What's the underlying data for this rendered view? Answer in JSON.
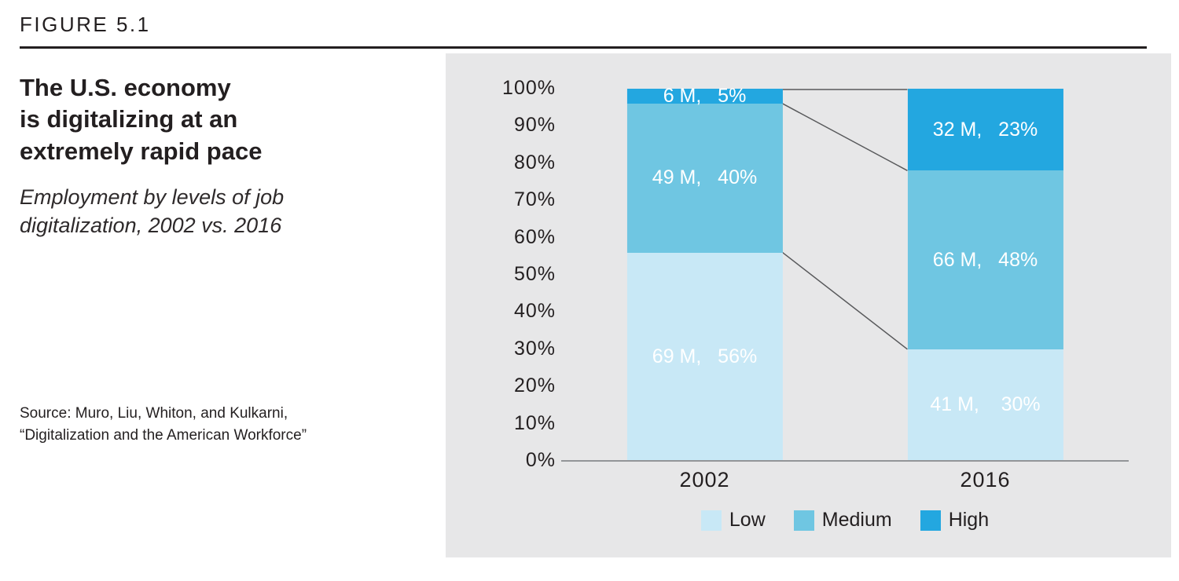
{
  "header": {
    "figure_label": "FIGURE 5.1"
  },
  "left_panel": {
    "title": "The U.S. economy\nis digitalizing at an\nextremely rapid pace",
    "subtitle": "Employment by levels of job\ndigitalization, 2002 vs. 2016",
    "source": "Source: Muro, Liu, Whiton, and Kulkarni,\n“Digitalization and the American Workforce”"
  },
  "chart_data": {
    "type": "bar",
    "variant": "100-percent-stacked-column",
    "title": "Employment by levels of job digitalization, 2002 vs. 2016",
    "categories": [
      "2002",
      "2016"
    ],
    "series": [
      {
        "name": "Low",
        "color": "#c8e8f6",
        "millions": [
          69,
          41
        ],
        "percent": [
          56,
          30
        ],
        "labels": [
          "69 M,   56%",
          "41 M,    30%"
        ]
      },
      {
        "name": "Medium",
        "color": "#6fc6e2",
        "millions": [
          49,
          66
        ],
        "percent": [
          40,
          48
        ],
        "labels": [
          "49 M,   40%",
          "66 M,   48%"
        ]
      },
      {
        "name": "High",
        "color": "#23a7e0",
        "millions": [
          6,
          32
        ],
        "percent": [
          5,
          23
        ],
        "labels": [
          "6 M,   5%",
          "32 M,   23%"
        ]
      }
    ],
    "y_ticks": [
      "100%",
      "90%",
      "80%",
      "70%",
      "60%",
      "50%",
      "40%",
      "30%",
      "20%",
      "10%",
      "0%"
    ],
    "ylim": [
      0,
      100
    ],
    "grid": false,
    "legend": [
      "Low",
      "Medium",
      "High"
    ],
    "legend_position": "bottom",
    "connector_color": "#58595b",
    "panel_background": "#e7e7e8"
  }
}
